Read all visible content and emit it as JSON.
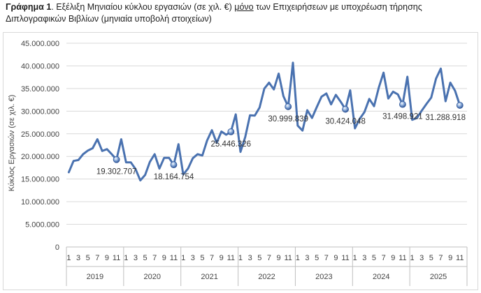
{
  "caption": {
    "label": "Γράφημα 1",
    "part1": ". Εξέλιξη Μηνιαίου κύκλου εργασιών (σε χιλ. €) ",
    "emphasis": "μόνο",
    "part2": " των Επιχειρήσεων με υποχρέωση τήρησης Διπλογραφικών Βιβλίων (μηνιαία υποβολή στοιχείων)"
  },
  "chart_data": {
    "type": "line",
    "title": "",
    "ylabel": "Κύκλος Εργασιών (σε χιλ. €)",
    "xlabel": "",
    "ylim": [
      0,
      45000000
    ],
    "y_ticks": [
      "0",
      "5.000.000",
      "10.000.000",
      "15.000.000",
      "20.000.000",
      "25.000.000",
      "30.000.000",
      "35.000.000",
      "40.000.000",
      "45.000.000"
    ],
    "month_ticks": [
      "1",
      "3",
      "5",
      "7",
      "9",
      "11"
    ],
    "years": [
      "2019",
      "2020",
      "2021",
      "2022",
      "2023",
      "2024",
      "2025"
    ],
    "grid": true,
    "legend": "none",
    "line_color": "#4a72b0",
    "series": [
      {
        "values": [
          16500000,
          19000000,
          19200000,
          20500000,
          21300000,
          21800000,
          23800000,
          21200000,
          21600000,
          20500000,
          19302707,
          23800000,
          18700000,
          18700000,
          17200000,
          14700000,
          15900000,
          18800000,
          20500000,
          17300000,
          19700000,
          19700000,
          18164754,
          22700000,
          16000000,
          17300000,
          19600000,
          20500000,
          20200000,
          23500000,
          25800000,
          23000000,
          25500000,
          24800000,
          25446326,
          29300000,
          21000000,
          24300000,
          29100000,
          29000000,
          30800000,
          35000000,
          36300000,
          34800000,
          38300000,
          33300000,
          30999839,
          40700000,
          26800000,
          25700000,
          30200000,
          28500000,
          30900000,
          33200000,
          33900000,
          31500000,
          33600000,
          32100000,
          30424048,
          34600000,
          26200000,
          28300000,
          29800000,
          32700000,
          31100000,
          35200000,
          38500000,
          32800000,
          34300000,
          33700000,
          31498921,
          37600000,
          28100000,
          28500000,
          30100000,
          31600000,
          33000000,
          37200000,
          39400000,
          32200000,
          36300000,
          34500000,
          31288918
        ]
      }
    ],
    "data_labels": [
      {
        "index": 10,
        "text": "19.302.707"
      },
      {
        "index": 22,
        "text": "18.164.754"
      },
      {
        "index": 34,
        "text": "25.446.326"
      },
      {
        "index": 46,
        "text": "30.999.839"
      },
      {
        "index": 58,
        "text": "30.424.048"
      },
      {
        "index": 70,
        "text": "31.498.921"
      },
      {
        "index": 82,
        "text": "31.288.918"
      }
    ]
  }
}
